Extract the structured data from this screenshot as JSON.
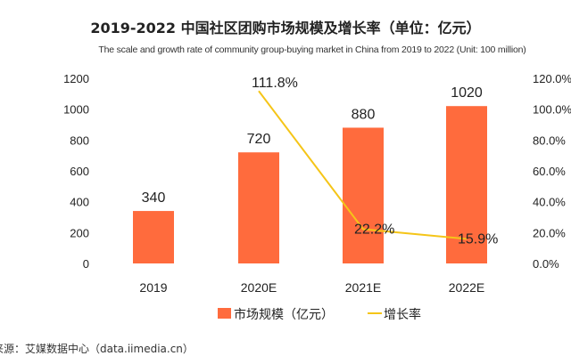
{
  "chart_data": {
    "type": "bar",
    "title": "2019-2022 中国社区团购市场规模及增长率（单位：亿元）",
    "subtitle": "The scale and growth rate of community group-buying market in China from 2019 to 2022 (Unit: 100 million)",
    "categories": [
      "2019",
      "2020E",
      "2021E",
      "2022E"
    ],
    "series": [
      {
        "name": "市场规模（亿元）",
        "type": "bar",
        "axis": "left",
        "values": [
          340,
          720,
          880,
          1020
        ],
        "labels": [
          "340",
          "720",
          "880",
          "1020"
        ],
        "color": "#FF6B3D"
      },
      {
        "name": "增长率",
        "type": "line",
        "axis": "right",
        "values": [
          null,
          111.8,
          22.2,
          15.9
        ],
        "labels": [
          "",
          "111.8%",
          "22.2%",
          "15.9%"
        ],
        "color": "#F5C518"
      }
    ],
    "ylim": [
      0,
      1200
    ],
    "yticks": [
      "0",
      "200",
      "400",
      "600",
      "800",
      "1000",
      "1200"
    ],
    "y2lim": [
      0,
      120
    ],
    "y2ticks": [
      "0.0%",
      "20.0%",
      "40.0%",
      "60.0%",
      "80.0%",
      "100.0%",
      "120.0%"
    ],
    "grid": false,
    "legend": "bottom"
  },
  "source": "来源：艾媒数据中心（data.iimedia.cn）"
}
